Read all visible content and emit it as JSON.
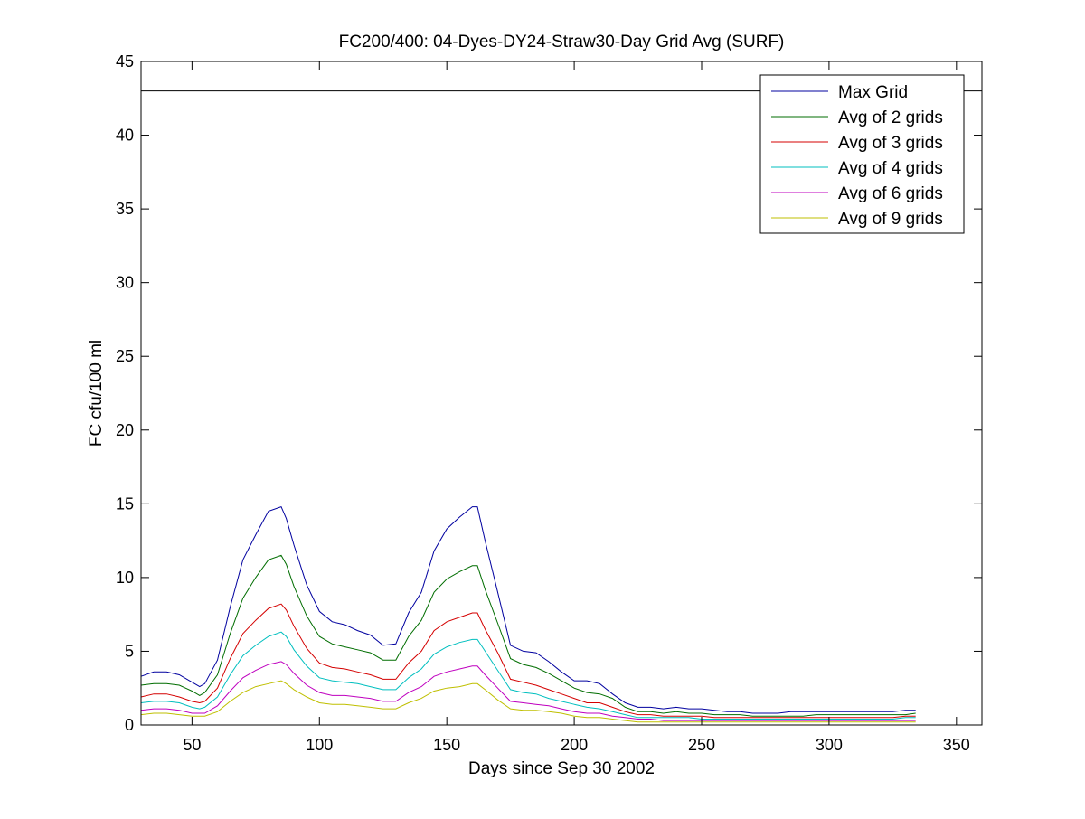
{
  "chart_data": {
    "type": "line",
    "title": "FC200/400: 04-Dyes-DY24-Straw30-Day Grid Avg (SURF)",
    "xlabel": "Days since Sep 30 2002",
    "ylabel": "FC cfu/100 ml",
    "xlim": [
      30,
      360
    ],
    "ylim": [
      0,
      45
    ],
    "xticks": [
      50,
      100,
      150,
      200,
      250,
      300,
      350
    ],
    "yticks": [
      0,
      5,
      10,
      15,
      20,
      25,
      30,
      35,
      40,
      45
    ],
    "grid": false,
    "legend_position": "top-right",
    "reference_lines": [
      {
        "y": 43,
        "color": "#000000"
      }
    ],
    "x": [
      30,
      35,
      40,
      45,
      50,
      53,
      55,
      60,
      65,
      70,
      75,
      80,
      85,
      87,
      90,
      95,
      100,
      105,
      110,
      115,
      120,
      125,
      130,
      135,
      140,
      145,
      150,
      155,
      160,
      162,
      165,
      170,
      175,
      180,
      185,
      190,
      195,
      200,
      205,
      210,
      215,
      220,
      225,
      230,
      235,
      240,
      245,
      250,
      255,
      260,
      265,
      270,
      275,
      280,
      285,
      290,
      295,
      300,
      305,
      310,
      315,
      320,
      325,
      330,
      334
    ],
    "series": [
      {
        "name": "Max Grid",
        "color": "#00009f",
        "values": [
          3.3,
          3.6,
          3.6,
          3.4,
          2.9,
          2.6,
          2.8,
          4.4,
          8.0,
          11.2,
          12.9,
          14.5,
          14.8,
          14.0,
          12.2,
          9.5,
          7.7,
          7.0,
          6.8,
          6.4,
          6.1,
          5.4,
          5.5,
          7.6,
          9.0,
          11.8,
          13.3,
          14.1,
          14.8,
          14.8,
          12.5,
          9.0,
          5.4,
          5.0,
          4.9,
          4.3,
          3.6,
          3.0,
          3.0,
          2.8,
          2.1,
          1.5,
          1.2,
          1.2,
          1.1,
          1.2,
          1.1,
          1.1,
          1.0,
          0.9,
          0.9,
          0.8,
          0.8,
          0.8,
          0.9,
          0.9,
          0.9,
          0.9,
          0.9,
          0.9,
          0.9,
          0.9,
          0.9,
          1.0,
          1.0
        ]
      },
      {
        "name": "Avg of 2 grids",
        "color": "#006d00",
        "values": [
          2.7,
          2.8,
          2.8,
          2.7,
          2.3,
          2.0,
          2.2,
          3.4,
          6.2,
          8.6,
          10.0,
          11.2,
          11.5,
          10.9,
          9.4,
          7.4,
          6.0,
          5.5,
          5.3,
          5.1,
          4.9,
          4.4,
          4.4,
          6.0,
          7.1,
          9.0,
          9.9,
          10.4,
          10.8,
          10.8,
          9.2,
          6.9,
          4.5,
          4.1,
          3.9,
          3.5,
          3.0,
          2.5,
          2.2,
          2.1,
          1.8,
          1.2,
          0.9,
          0.9,
          0.8,
          0.9,
          0.8,
          0.8,
          0.7,
          0.7,
          0.7,
          0.6,
          0.6,
          0.6,
          0.6,
          0.6,
          0.7,
          0.7,
          0.7,
          0.7,
          0.7,
          0.7,
          0.7,
          0.7,
          0.8
        ]
      },
      {
        "name": "Avg of 3 grids",
        "color": "#d40000",
        "values": [
          1.9,
          2.1,
          2.1,
          1.9,
          1.6,
          1.5,
          1.6,
          2.5,
          4.5,
          6.2,
          7.1,
          7.9,
          8.2,
          7.8,
          6.7,
          5.2,
          4.2,
          3.9,
          3.8,
          3.6,
          3.4,
          3.1,
          3.1,
          4.2,
          5.0,
          6.4,
          7.0,
          7.3,
          7.6,
          7.6,
          6.5,
          4.9,
          3.1,
          2.9,
          2.7,
          2.4,
          2.1,
          1.8,
          1.5,
          1.5,
          1.2,
          0.9,
          0.7,
          0.7,
          0.6,
          0.6,
          0.6,
          0.6,
          0.5,
          0.5,
          0.5,
          0.5,
          0.5,
          0.5,
          0.5,
          0.5,
          0.5,
          0.5,
          0.5,
          0.5,
          0.5,
          0.5,
          0.5,
          0.6,
          0.6
        ]
      },
      {
        "name": "Avg of 4 grids",
        "color": "#00bfbf",
        "values": [
          1.5,
          1.6,
          1.6,
          1.5,
          1.2,
          1.1,
          1.2,
          1.9,
          3.4,
          4.7,
          5.4,
          6.0,
          6.3,
          6.0,
          5.1,
          4.0,
          3.2,
          3.0,
          2.9,
          2.8,
          2.6,
          2.4,
          2.4,
          3.2,
          3.8,
          4.8,
          5.3,
          5.6,
          5.8,
          5.8,
          5.0,
          3.7,
          2.4,
          2.2,
          2.1,
          1.8,
          1.6,
          1.4,
          1.2,
          1.1,
          0.9,
          0.7,
          0.5,
          0.5,
          0.5,
          0.5,
          0.5,
          0.4,
          0.4,
          0.4,
          0.4,
          0.4,
          0.4,
          0.4,
          0.4,
          0.4,
          0.4,
          0.4,
          0.4,
          0.4,
          0.4,
          0.4,
          0.4,
          0.5,
          0.5
        ]
      },
      {
        "name": "Avg of 6 grids",
        "color": "#bf00bf",
        "values": [
          1.0,
          1.1,
          1.1,
          1.0,
          0.8,
          0.8,
          0.8,
          1.3,
          2.3,
          3.2,
          3.7,
          4.1,
          4.3,
          4.1,
          3.5,
          2.7,
          2.2,
          2.0,
          2.0,
          1.9,
          1.8,
          1.6,
          1.6,
          2.2,
          2.6,
          3.3,
          3.6,
          3.8,
          4.0,
          4.0,
          3.4,
          2.5,
          1.6,
          1.5,
          1.4,
          1.3,
          1.1,
          0.9,
          0.8,
          0.8,
          0.6,
          0.5,
          0.4,
          0.4,
          0.3,
          0.3,
          0.3,
          0.3,
          0.3,
          0.3,
          0.3,
          0.3,
          0.3,
          0.3,
          0.3,
          0.3,
          0.3,
          0.3,
          0.3,
          0.3,
          0.3,
          0.3,
          0.3,
          0.3,
          0.3
        ]
      },
      {
        "name": "Avg of 9 grids",
        "color": "#bfbf00",
        "values": [
          0.7,
          0.8,
          0.8,
          0.7,
          0.6,
          0.6,
          0.6,
          0.9,
          1.6,
          2.2,
          2.6,
          2.8,
          3.0,
          2.8,
          2.4,
          1.9,
          1.5,
          1.4,
          1.4,
          1.3,
          1.2,
          1.1,
          1.1,
          1.5,
          1.8,
          2.3,
          2.5,
          2.6,
          2.8,
          2.8,
          2.4,
          1.7,
          1.1,
          1.0,
          1.0,
          0.9,
          0.8,
          0.6,
          0.5,
          0.5,
          0.4,
          0.3,
          0.2,
          0.2,
          0.2,
          0.2,
          0.2,
          0.2,
          0.2,
          0.2,
          0.2,
          0.2,
          0.2,
          0.2,
          0.2,
          0.2,
          0.2,
          0.2,
          0.2,
          0.2,
          0.2,
          0.2,
          0.2,
          0.2,
          0.2
        ]
      }
    ]
  }
}
